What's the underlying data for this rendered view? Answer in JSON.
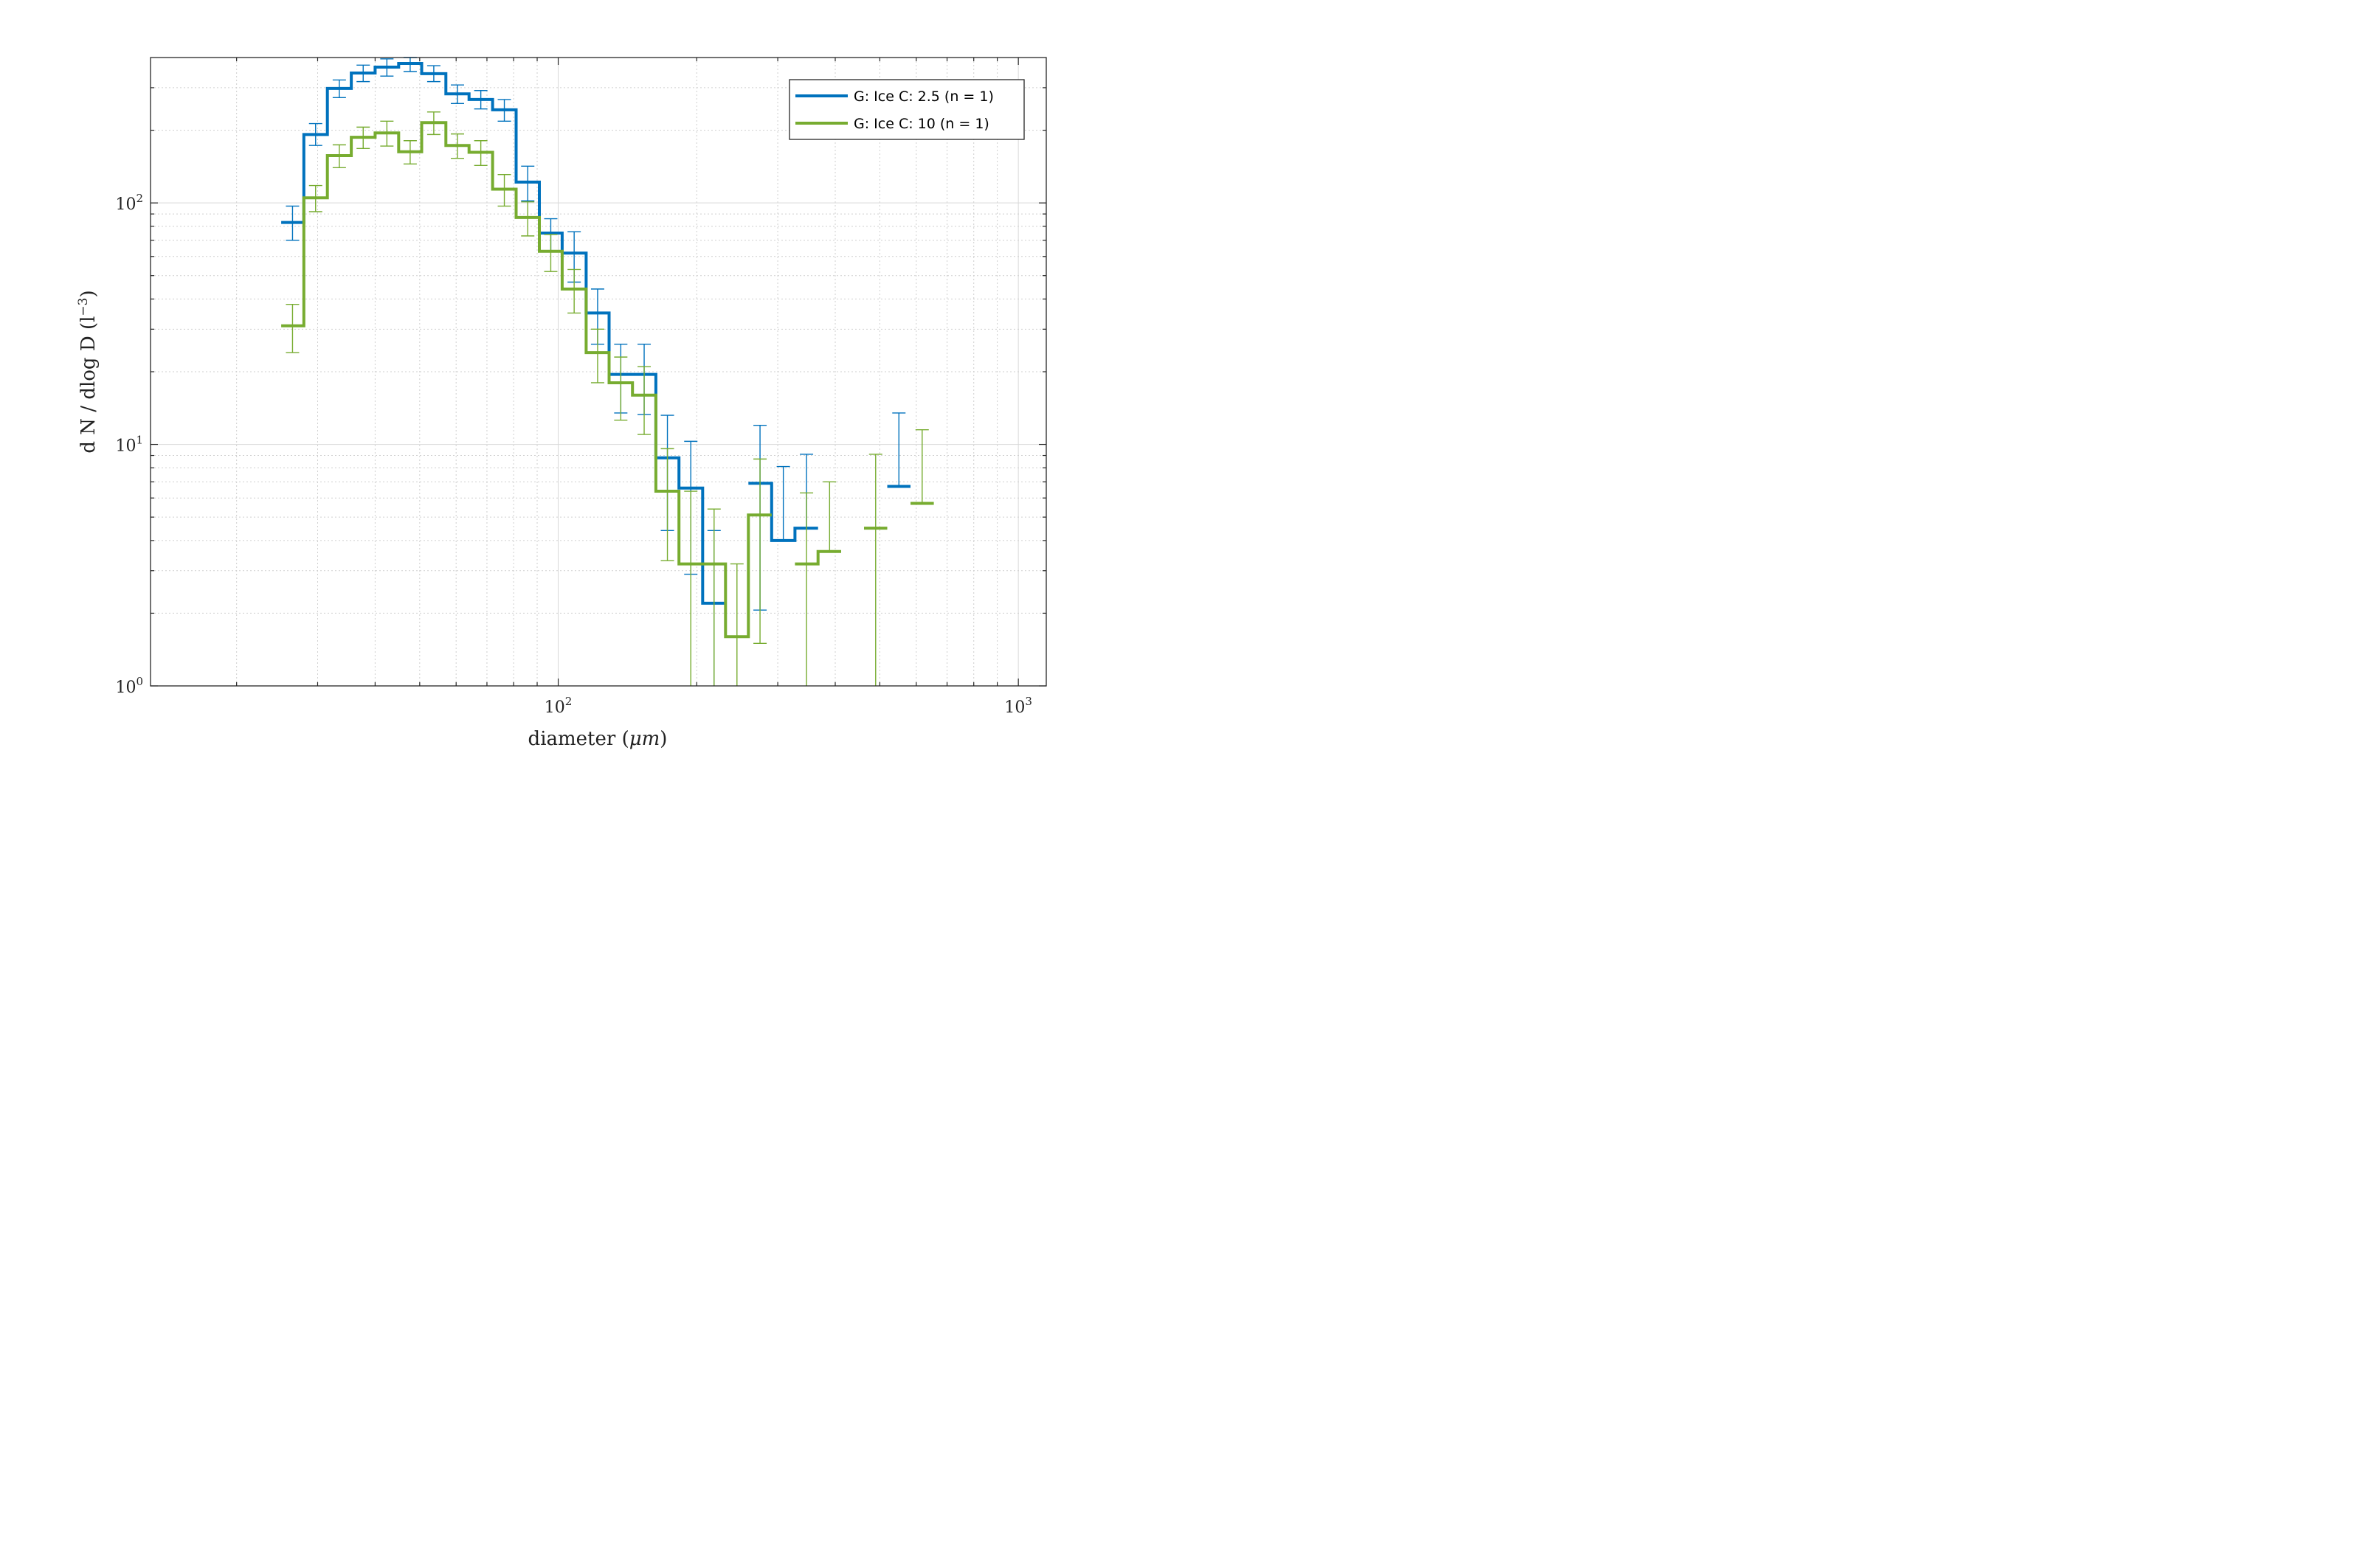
{
  "chart_data": {
    "type": "line",
    "style": "stairs with error bars",
    "xlabel": "diameter",
    "xlabel_unit": "μm",
    "ylabel": "d N / dlog D (l",
    "ylabel_sup": "−3",
    "ylabel_close": ")",
    "xscale": "log",
    "yscale": "log",
    "xlim": [
      13,
      1150
    ],
    "ylim": [
      1,
      400
    ],
    "x_ticks": [
      {
        "value": 100,
        "base": "10",
        "exp": "2"
      },
      {
        "value": 1000,
        "base": "10",
        "exp": "3"
      }
    ],
    "y_ticks": [
      {
        "value": 1,
        "base": "10",
        "exp": "0"
      },
      {
        "value": 10,
        "base": "10",
        "exp": "1"
      },
      {
        "value": 100,
        "base": "10",
        "exp": "2"
      }
    ],
    "grid": true,
    "minor_grid": true,
    "legend_position": "top-right",
    "series": [
      {
        "name": "G: Ice C: 2.5 (n = 1)",
        "color": "#0072BD",
        "bins": [
          {
            "x0": 25,
            "x1": 28,
            "y": 83,
            "lo": 70,
            "hi": 97
          },
          {
            "x0": 28,
            "x1": 31.5,
            "y": 192,
            "lo": 173,
            "hi": 213
          },
          {
            "x0": 31.5,
            "x1": 35.5,
            "y": 298,
            "lo": 273,
            "hi": 323
          },
          {
            "x0": 35.5,
            "x1": 40,
            "y": 345,
            "lo": 318,
            "hi": 372
          },
          {
            "x0": 40,
            "x1": 45,
            "y": 365,
            "lo": 335,
            "hi": 395
          },
          {
            "x0": 45,
            "x1": 50.5,
            "y": 378,
            "lo": 350,
            "hi": 405
          },
          {
            "x0": 50.5,
            "x1": 57,
            "y": 343,
            "lo": 318,
            "hi": 370
          },
          {
            "x0": 57,
            "x1": 64,
            "y": 283,
            "lo": 258,
            "hi": 308
          },
          {
            "x0": 64,
            "x1": 72,
            "y": 268,
            "lo": 245,
            "hi": 292
          },
          {
            "x0": 72,
            "x1": 81,
            "y": 243,
            "lo": 218,
            "hi": 268
          },
          {
            "x0": 81,
            "x1": 91,
            "y": 122,
            "lo": 102,
            "hi": 142
          },
          {
            "x0": 91,
            "x1": 102,
            "y": 75,
            "lo": 63,
            "hi": 86
          },
          {
            "x0": 102,
            "x1": 115,
            "y": 62,
            "lo": 47,
            "hi": 76
          },
          {
            "x0": 115,
            "x1": 129,
            "y": 35,
            "lo": 26,
            "hi": 44
          },
          {
            "x0": 129,
            "x1": 145,
            "y": 19.5,
            "lo": 13.5,
            "hi": 26
          },
          {
            "x0": 145,
            "x1": 163,
            "y": 19.5,
            "lo": 13.3,
            "hi": 26
          },
          {
            "x0": 163,
            "x1": 183,
            "y": 8.8,
            "lo": 4.4,
            "hi": 13.2
          },
          {
            "x0": 183,
            "x1": 206,
            "y": 6.6,
            "lo": 2.9,
            "hi": 10.3
          },
          {
            "x0": 206,
            "x1": 231,
            "y": 2.2,
            "lo": 0.5,
            "hi": 4.4
          },
          {
            "x0": 231,
            "x1": 259,
            "y": null,
            "lo": null,
            "hi": null
          },
          {
            "x0": 259,
            "x1": 291,
            "y": 6.9,
            "lo": 2.06,
            "hi": 12.0
          },
          {
            "x0": 291,
            "x1": 327,
            "y": 4.0,
            "lo": null,
            "hi": 8.1
          },
          {
            "x0": 327,
            "x1": 367,
            "y": 4.5,
            "lo": null,
            "hi": 9.1
          },
          {
            "x0": 367,
            "x1": 412,
            "y": null,
            "lo": null,
            "hi": null
          },
          {
            "x0": 412,
            "x1": 462,
            "y": null,
            "lo": null,
            "hi": null
          },
          {
            "x0": 462,
            "x1": 519,
            "y": null,
            "lo": null,
            "hi": null
          },
          {
            "x0": 519,
            "x1": 583,
            "y": 6.7,
            "lo": null,
            "hi": 13.5
          }
        ]
      },
      {
        "name": "G: Ice C: 10 (n = 1)",
        "color": "#77AC30",
        "bins": [
          {
            "x0": 25,
            "x1": 28,
            "y": 31,
            "lo": 24,
            "hi": 38
          },
          {
            "x0": 28,
            "x1": 31.5,
            "y": 105,
            "lo": 92,
            "hi": 118
          },
          {
            "x0": 31.5,
            "x1": 35.5,
            "y": 157,
            "lo": 140,
            "hi": 174
          },
          {
            "x0": 35.5,
            "x1": 40,
            "y": 187,
            "lo": 168,
            "hi": 206
          },
          {
            "x0": 40,
            "x1": 45,
            "y": 195,
            "lo": 172,
            "hi": 218
          },
          {
            "x0": 45,
            "x1": 50.5,
            "y": 163,
            "lo": 145,
            "hi": 181
          },
          {
            "x0": 50.5,
            "x1": 57,
            "y": 215,
            "lo": 192,
            "hi": 238
          },
          {
            "x0": 57,
            "x1": 64,
            "y": 173,
            "lo": 153,
            "hi": 193
          },
          {
            "x0": 64,
            "x1": 72,
            "y": 162,
            "lo": 143,
            "hi": 181
          },
          {
            "x0": 72,
            "x1": 81,
            "y": 114,
            "lo": 97,
            "hi": 131
          },
          {
            "x0": 81,
            "x1": 91,
            "y": 87,
            "lo": 73,
            "hi": 101
          },
          {
            "x0": 91,
            "x1": 102,
            "y": 63,
            "lo": 52,
            "hi": 74
          },
          {
            "x0": 102,
            "x1": 115,
            "y": 44,
            "lo": 35,
            "hi": 53
          },
          {
            "x0": 115,
            "x1": 129,
            "y": 24,
            "lo": 18,
            "hi": 30
          },
          {
            "x0": 129,
            "x1": 145,
            "y": 18,
            "lo": 12.6,
            "hi": 23
          },
          {
            "x0": 145,
            "x1": 163,
            "y": 16,
            "lo": 11,
            "hi": 21
          },
          {
            "x0": 163,
            "x1": 183,
            "y": 6.4,
            "lo": 3.3,
            "hi": 9.6
          },
          {
            "x0": 183,
            "x1": 206,
            "y": 3.2,
            "lo": 0.5,
            "hi": 6.4
          },
          {
            "x0": 206,
            "x1": 231,
            "y": 3.2,
            "lo": 0.5,
            "hi": 5.4
          },
          {
            "x0": 231,
            "x1": 259,
            "y": 1.6,
            "lo": 0.5,
            "hi": 3.2
          },
          {
            "x0": 259,
            "x1": 291,
            "y": 5.1,
            "lo": 1.5,
            "hi": 8.7
          },
          {
            "x0": 291,
            "x1": 327,
            "y": null,
            "lo": null,
            "hi": null
          },
          {
            "x0": 327,
            "x1": 367,
            "y": 3.2,
            "lo": 0.5,
            "hi": 6.3
          },
          {
            "x0": 367,
            "x1": 412,
            "y": 3.6,
            "lo": null,
            "hi": 7.0
          },
          {
            "x0": 412,
            "x1": 462,
            "y": null,
            "lo": null,
            "hi": null
          },
          {
            "x0": 462,
            "x1": 519,
            "y": 4.5,
            "lo": 0.5,
            "hi": 9.1
          },
          {
            "x0": 519,
            "x1": 583,
            "y": null,
            "lo": null,
            "hi": null
          },
          {
            "x0": 583,
            "x1": 655,
            "y": 5.7,
            "lo": null,
            "hi": 11.5
          }
        ]
      }
    ]
  }
}
